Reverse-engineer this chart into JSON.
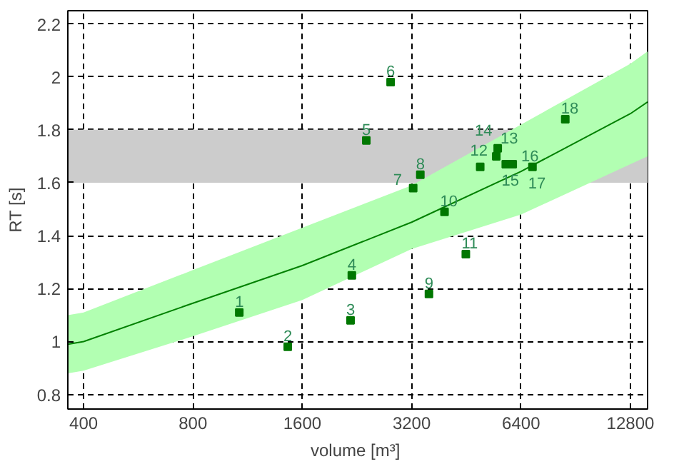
{
  "chart_data": {
    "type": "scatter",
    "xlabel": "volume  [m³]",
    "ylabel": "RT [s]",
    "log": "x",
    "xlim": [
      362,
      14270
    ],
    "ylim": [
      0.745,
      2.25
    ],
    "xticks": [
      400,
      800,
      1600,
      3200,
      6400,
      12800
    ],
    "yticks": [
      0.8,
      1,
      1.2,
      1.4,
      1.6,
      1.8,
      2,
      2.2
    ],
    "grid": true,
    "bands": [
      {
        "axis": "y",
        "from": 1.6,
        "to": 1.8,
        "color": "#cccccc"
      }
    ],
    "series": [
      {
        "type": "line",
        "color": "#008000",
        "x": [
          362,
          400,
          800,
          1600,
          3200,
          6400,
          12800,
          14270
        ],
        "values": [
          0.99,
          1.0,
          1.145,
          1.287,
          1.451,
          1.643,
          1.861,
          1.905
        ],
        "lower": [
          0.88,
          0.89,
          1.02,
          1.157,
          1.35,
          1.48,
          1.67,
          1.7
        ],
        "upper": [
          1.1,
          1.11,
          1.27,
          1.43,
          1.59,
          1.82,
          2.05,
          2.096
        ]
      },
      {
        "marker": "square",
        "color": "#007700",
        "x": [
          1073,
          1459,
          2172,
          2190,
          2400,
          2800,
          3230,
          3380,
          3570,
          3940,
          4510,
          4940,
          5470,
          5520,
          5810,
          6070,
          6880,
          8470
        ],
        "values": [
          1.11,
          0.98,
          1.08,
          1.25,
          1.76,
          1.98,
          1.58,
          1.63,
          1.18,
          1.49,
          1.33,
          1.66,
          1.7,
          1.73,
          1.67,
          1.67,
          1.66,
          1.84
        ]
      }
    ],
    "annotations": [
      {
        "text": "1",
        "x": 1073,
        "y": 1.11
      },
      {
        "text": "2",
        "x": 1459,
        "y": 0.98
      },
      {
        "text": "3",
        "x": 2172,
        "y": 1.08
      },
      {
        "text": "4",
        "x": 2190,
        "y": 1.25
      },
      {
        "text": "5",
        "x": 2400,
        "y": 1.76
      },
      {
        "text": "6",
        "x": 2800,
        "y": 1.98
      },
      {
        "text": "7",
        "x": 3230,
        "y": 1.58
      },
      {
        "text": "8",
        "x": 3380,
        "y": 1.63
      },
      {
        "text": "9",
        "x": 3570,
        "y": 1.18
      },
      {
        "text": "10",
        "x": 3940,
        "y": 1.49
      },
      {
        "text": "11",
        "x": 4510,
        "y": 1.33
      },
      {
        "text": "12",
        "x": 4940,
        "y": 1.66
      },
      {
        "text": "13",
        "x": 5470,
        "y": 1.7
      },
      {
        "text": "14",
        "x": 5520,
        "y": 1.73
      },
      {
        "text": "15",
        "x": 5810,
        "y": 1.67
      },
      {
        "text": "16",
        "x": 6070,
        "y": 1.67
      },
      {
        "text": "17",
        "x": 6880,
        "y": 1.66
      },
      {
        "text": "18",
        "x": 8470,
        "y": 1.84
      }
    ]
  }
}
